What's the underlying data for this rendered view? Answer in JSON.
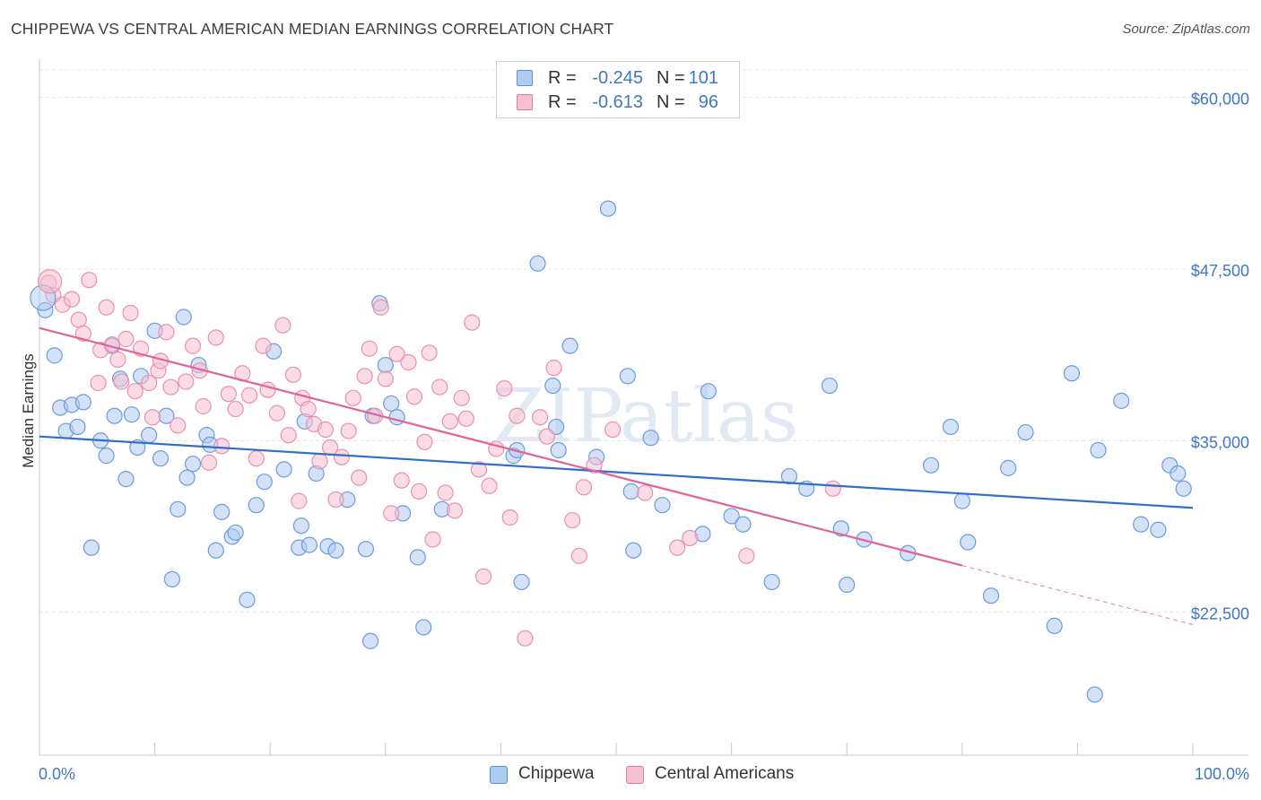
{
  "title": "CHIPPEWA VS CENTRAL AMERICAN MEDIAN EARNINGS CORRELATION CHART",
  "source": "Source: ZipAtlas.com",
  "watermark": "ZIPatlas",
  "legend": {
    "rows": [
      {
        "r_label": "R =",
        "r_value": "-0.245",
        "n_label": "N =",
        "n_value": "101",
        "color": "#aecbf0",
        "stroke": "#5a8fd6"
      },
      {
        "r_label": "R =",
        "r_value": "-0.613",
        "n_label": "N =",
        "n_value": "96",
        "color": "#f7bfd2",
        "stroke": "#e07aa0"
      }
    ]
  },
  "bottom_legend": [
    {
      "label": "Chippewa",
      "color": "#aecbf0",
      "stroke": "#5a8fd6"
    },
    {
      "label": "Central Americans",
      "color": "#f7bfd2",
      "stroke": "#e07aa0"
    }
  ],
  "chart_data": {
    "type": "scatter",
    "title": "CHIPPEWA VS CENTRAL AMERICAN MEDIAN EARNINGS CORRELATION CHART",
    "xlabel": "",
    "ylabel": "Median Earnings",
    "xlim": [
      0,
      100
    ],
    "ylim": [
      13000,
      62000
    ],
    "x_tick_labels": [
      "0.0%",
      "100.0%"
    ],
    "y_ticks": [
      22500,
      35000,
      47500,
      60000
    ],
    "y_tick_labels": [
      "$22,500",
      "$35,000",
      "$47,500",
      "$60,000"
    ],
    "grid": true,
    "series": [
      {
        "name": "Chippewa",
        "color": "#aecbf0",
        "stroke": "#6b9be0",
        "trend": {
          "x": [
            0,
            100
          ],
          "y": [
            35300,
            30100
          ]
        },
        "points": [
          [
            0.5,
            44.5
          ],
          [
            1.3,
            41.2
          ],
          [
            1.8,
            37.4
          ],
          [
            2.3,
            35.7
          ],
          [
            2.8,
            37.6
          ],
          [
            3.3,
            36.0
          ],
          [
            3.8,
            37.8
          ],
          [
            4.5,
            27.2
          ],
          [
            5.3,
            35.0
          ],
          [
            5.8,
            33.9
          ],
          [
            6.3,
            41.9
          ],
          [
            6.5,
            36.8
          ],
          [
            7.0,
            39.5
          ],
          [
            7.5,
            32.2
          ],
          [
            8.0,
            36.9
          ],
          [
            8.5,
            34.5
          ],
          [
            8.8,
            39.7
          ],
          [
            9.5,
            35.4
          ],
          [
            10.0,
            43.0
          ],
          [
            10.5,
            33.7
          ],
          [
            11.0,
            36.8
          ],
          [
            11.5,
            24.9
          ],
          [
            12.0,
            30.0
          ],
          [
            12.5,
            44.0
          ],
          [
            12.8,
            32.3
          ],
          [
            13.3,
            33.3
          ],
          [
            13.8,
            40.5
          ],
          [
            14.5,
            35.4
          ],
          [
            14.8,
            34.7
          ],
          [
            15.3,
            27.0
          ],
          [
            15.8,
            29.8
          ],
          [
            16.7,
            28.0
          ],
          [
            17.0,
            28.3
          ],
          [
            18.0,
            23.4
          ],
          [
            18.8,
            30.3
          ],
          [
            19.5,
            32.0
          ],
          [
            20.3,
            41.5
          ],
          [
            21.2,
            32.9
          ],
          [
            22.5,
            27.2
          ],
          [
            22.7,
            28.8
          ],
          [
            23.0,
            36.4
          ],
          [
            23.4,
            27.4
          ],
          [
            24.0,
            32.6
          ],
          [
            25.0,
            27.3
          ],
          [
            25.7,
            27.0
          ],
          [
            26.7,
            30.7
          ],
          [
            28.3,
            27.1
          ],
          [
            28.7,
            20.4
          ],
          [
            28.9,
            36.8
          ],
          [
            29.5,
            45.0
          ],
          [
            30.0,
            40.5
          ],
          [
            30.5,
            37.7
          ],
          [
            31.0,
            36.7
          ],
          [
            31.5,
            29.7
          ],
          [
            32.8,
            26.5
          ],
          [
            33.3,
            21.4
          ],
          [
            34.9,
            30.0
          ],
          [
            41.1,
            33.9
          ],
          [
            41.4,
            34.3
          ],
          [
            41.8,
            24.7
          ],
          [
            43.2,
            47.9
          ],
          [
            44.5,
            39.0
          ],
          [
            44.8,
            36.0
          ],
          [
            45.0,
            34.3
          ],
          [
            46.0,
            41.9
          ],
          [
            48.3,
            33.8
          ],
          [
            49.3,
            51.9
          ],
          [
            51.0,
            39.7
          ],
          [
            51.3,
            31.3
          ],
          [
            51.5,
            27.0
          ],
          [
            53.0,
            35.2
          ],
          [
            54.0,
            30.3
          ],
          [
            57.5,
            28.2
          ],
          [
            58.0,
            38.6
          ],
          [
            60.0,
            29.5
          ],
          [
            61.0,
            28.9
          ],
          [
            63.5,
            24.7
          ],
          [
            65.0,
            32.4
          ],
          [
            66.5,
            31.5
          ],
          [
            68.5,
            39.0
          ],
          [
            69.5,
            28.6
          ],
          [
            70.0,
            24.5
          ],
          [
            71.5,
            27.8
          ],
          [
            75.3,
            26.8
          ],
          [
            77.3,
            33.2
          ],
          [
            79.0,
            36.0
          ],
          [
            80.0,
            30.6
          ],
          [
            80.5,
            27.6
          ],
          [
            82.5,
            23.7
          ],
          [
            84.0,
            33.0
          ],
          [
            85.5,
            35.6
          ],
          [
            88.0,
            21.5
          ],
          [
            89.5,
            39.9
          ],
          [
            91.5,
            16.5
          ],
          [
            91.8,
            34.3
          ],
          [
            93.8,
            37.9
          ],
          [
            95.5,
            28.9
          ],
          [
            97.0,
            28.5
          ],
          [
            98.0,
            33.2
          ],
          [
            98.7,
            32.6
          ],
          [
            99.2,
            31.5
          ]
        ]
      },
      {
        "name": "Central Americans",
        "color": "#f7bfd2",
        "stroke": "#ea8fb0",
        "trend": {
          "x": [
            0,
            80
          ],
          "y": [
            43200,
            25900
          ]
        },
        "trend_dashed": {
          "x": [
            80,
            100
          ],
          "y": [
            25900,
            21600
          ]
        },
        "points": [
          [
            0.8,
            46.5
          ],
          [
            1.2,
            45.6
          ],
          [
            2.0,
            44.9
          ],
          [
            2.8,
            45.3
          ],
          [
            3.4,
            43.8
          ],
          [
            3.8,
            42.8
          ],
          [
            4.3,
            46.7
          ],
          [
            5.1,
            39.2
          ],
          [
            5.3,
            41.6
          ],
          [
            5.8,
            44.7
          ],
          [
            6.3,
            42.0
          ],
          [
            6.8,
            40.9
          ],
          [
            7.1,
            39.3
          ],
          [
            7.5,
            42.4
          ],
          [
            7.9,
            44.3
          ],
          [
            8.3,
            38.6
          ],
          [
            8.8,
            41.7
          ],
          [
            9.5,
            39.2
          ],
          [
            9.8,
            36.7
          ],
          [
            10.3,
            40.1
          ],
          [
            10.5,
            40.8
          ],
          [
            11.0,
            42.9
          ],
          [
            11.4,
            38.9
          ],
          [
            12.0,
            36.1
          ],
          [
            12.7,
            39.3
          ],
          [
            13.3,
            41.9
          ],
          [
            13.9,
            40.1
          ],
          [
            14.2,
            37.5
          ],
          [
            14.7,
            33.4
          ],
          [
            15.3,
            42.5
          ],
          [
            15.8,
            34.6
          ],
          [
            16.4,
            38.4
          ],
          [
            17.0,
            37.3
          ],
          [
            17.6,
            39.9
          ],
          [
            18.2,
            38.3
          ],
          [
            18.8,
            33.7
          ],
          [
            19.4,
            41.9
          ],
          [
            19.8,
            38.7
          ],
          [
            20.6,
            37.0
          ],
          [
            21.1,
            43.4
          ],
          [
            21.6,
            35.4
          ],
          [
            22.0,
            39.8
          ],
          [
            22.5,
            30.6
          ],
          [
            22.8,
            38.1
          ],
          [
            23.3,
            37.3
          ],
          [
            23.8,
            36.2
          ],
          [
            24.3,
            33.5
          ],
          [
            24.8,
            35.8
          ],
          [
            25.2,
            34.5
          ],
          [
            25.7,
            30.7
          ],
          [
            26.2,
            33.8
          ],
          [
            26.8,
            35.7
          ],
          [
            27.2,
            38.1
          ],
          [
            27.7,
            32.3
          ],
          [
            28.2,
            39.7
          ],
          [
            28.6,
            41.7
          ],
          [
            29.1,
            36.8
          ],
          [
            29.6,
            44.7
          ],
          [
            30.0,
            39.5
          ],
          [
            30.5,
            29.7
          ],
          [
            31.0,
            41.3
          ],
          [
            31.4,
            32.1
          ],
          [
            32.0,
            40.7
          ],
          [
            32.5,
            38.2
          ],
          [
            32.9,
            31.3
          ],
          [
            33.4,
            34.9
          ],
          [
            33.8,
            41.4
          ],
          [
            34.1,
            27.8
          ],
          [
            34.7,
            38.9
          ],
          [
            35.2,
            31.2
          ],
          [
            35.6,
            36.4
          ],
          [
            36.0,
            29.9
          ],
          [
            36.6,
            38.1
          ],
          [
            37.0,
            36.6
          ],
          [
            37.5,
            43.6
          ],
          [
            38.1,
            32.9
          ],
          [
            38.5,
            25.1
          ],
          [
            39.0,
            31.7
          ],
          [
            39.6,
            34.4
          ],
          [
            40.3,
            38.8
          ],
          [
            40.8,
            29.4
          ],
          [
            41.4,
            36.8
          ],
          [
            42.1,
            20.6
          ],
          [
            43.4,
            36.7
          ],
          [
            44.0,
            35.3
          ],
          [
            44.6,
            40.3
          ],
          [
            46.2,
            29.2
          ],
          [
            46.8,
            26.6
          ],
          [
            47.2,
            31.6
          ],
          [
            48.1,
            33.2
          ],
          [
            49.7,
            35.8
          ],
          [
            52.5,
            31.2
          ],
          [
            55.3,
            27.2
          ],
          [
            56.4,
            27.9
          ],
          [
            61.3,
            26.6
          ],
          [
            68.8,
            31.5
          ]
        ]
      }
    ]
  }
}
